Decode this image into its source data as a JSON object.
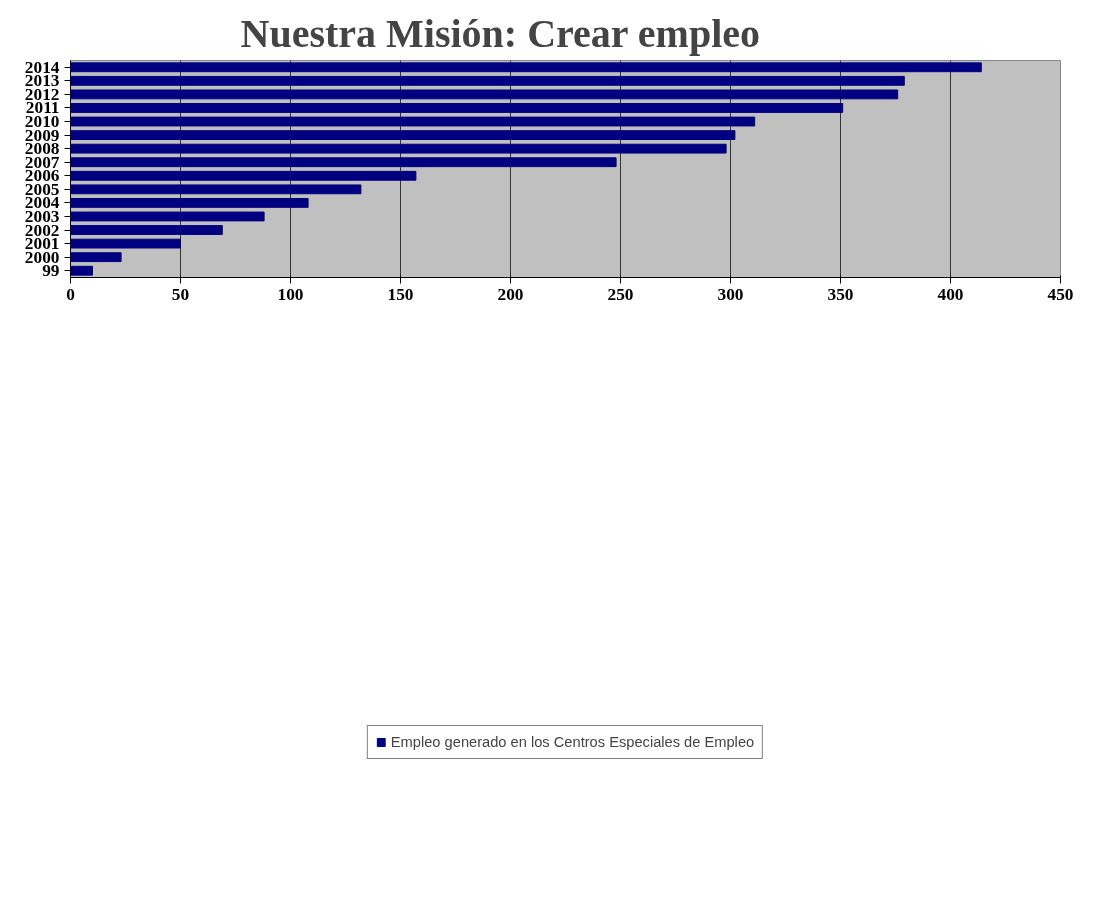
{
  "chart_data": {
    "type": "bar",
    "orientation": "horizontal",
    "title": "Nuestra Misión: Crear empleo",
    "categories": [
      "2014",
      "2013",
      "2012",
      "2011",
      "2010",
      "2009",
      "2008",
      "2007",
      "2006",
      "2005",
      "2004",
      "2003",
      "2002",
      "2001",
      "2000",
      "99"
    ],
    "series": [
      {
        "name": "Empleo generado en los Centros Especiales de Empleo",
        "color": "#000080",
        "values": [
          414,
          379,
          376,
          351,
          311,
          302,
          298,
          248,
          157,
          132,
          108,
          88,
          69,
          50,
          23,
          10
        ]
      }
    ],
    "xlim": [
      0,
      450
    ],
    "xticks": [
      0,
      50,
      100,
      150,
      200,
      250,
      300,
      350,
      400,
      450
    ],
    "grid": "x",
    "legend": "bottom"
  }
}
